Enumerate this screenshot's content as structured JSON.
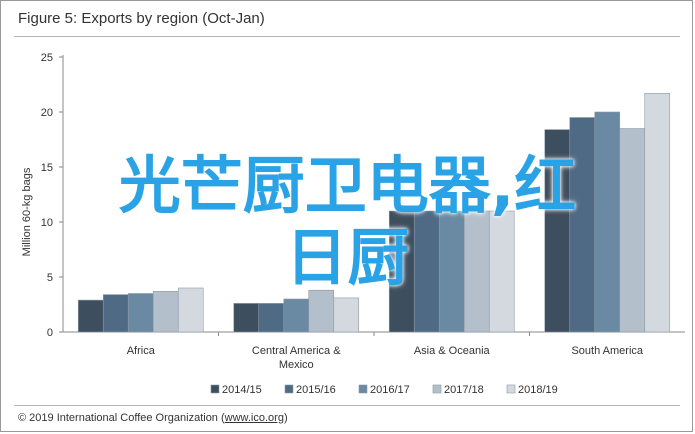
{
  "title": "Figure 5: Exports by region (Oct-Jan)",
  "footer": {
    "prefix": "© 2019 International Coffee Organization (",
    "link": "www.ico.org",
    "suffix": ")"
  },
  "watermark": {
    "line1": "光芒厨卫电器,红",
    "line2": "日厨"
  },
  "colors": {
    "series": [
      "#3d4e5f",
      "#4e6a85",
      "#6a8aa3",
      "#b3c0cc",
      "#d3d9df"
    ],
    "axis": "#8a8a8a",
    "grid": "#d9d9d9",
    "watermark": "#2aa3e6"
  },
  "chart_data": {
    "type": "bar",
    "title": "Figure 5: Exports by region (Oct-Jan)",
    "ylabel": "Million 60-kg bags",
    "xlabel": "",
    "ylim": [
      0,
      25
    ],
    "yticks": [
      0,
      5,
      10,
      15,
      20,
      25
    ],
    "grid": false,
    "legend_position": "bottom",
    "categories": [
      "Africa",
      "Central America &\nMexico",
      "Asia & Oceania",
      "South America"
    ],
    "category_lines": [
      [
        "Africa"
      ],
      [
        "Central America &",
        "Mexico"
      ],
      [
        "Asia & Oceania"
      ],
      [
        "South America"
      ]
    ],
    "series": [
      {
        "name": "2014/15",
        "values": [
          2.9,
          2.6,
          11.0,
          18.4
        ]
      },
      {
        "name": "2015/16",
        "values": [
          3.4,
          2.6,
          11.0,
          19.5
        ]
      },
      {
        "name": "2016/17",
        "values": [
          3.5,
          3.0,
          11.0,
          20.0
        ]
      },
      {
        "name": "2017/18",
        "values": [
          3.7,
          3.8,
          11.0,
          18.5
        ]
      },
      {
        "name": "2018/19",
        "values": [
          4.0,
          3.1,
          11.0,
          21.7
        ]
      }
    ]
  }
}
